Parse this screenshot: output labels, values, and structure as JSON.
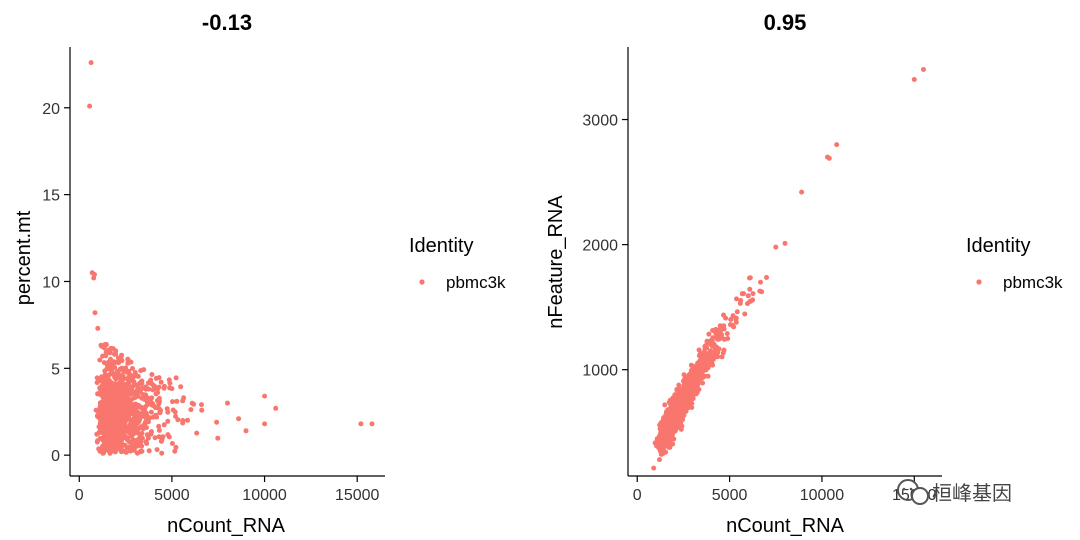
{
  "watermark": "桓峰基因",
  "chart_data": [
    {
      "type": "scatter",
      "title": "-0.13",
      "xlabel": "nCount_RNA",
      "ylabel": "percent.mt",
      "xlim": [
        -500,
        16500
      ],
      "ylim": [
        -1.2,
        23.5
      ],
      "xticks": [
        0,
        5000,
        10000,
        15000
      ],
      "yticks": [
        0,
        5,
        10,
        15,
        20
      ],
      "legend": {
        "title": "Identity",
        "entries": [
          "pbmc3k"
        ],
        "position": "right"
      },
      "color": "#F8766D",
      "grid": false,
      "cluster": {
        "x_range": [
          600,
          7500
        ],
        "y_range": [
          0,
          7
        ],
        "center": [
          2200,
          2.2
        ]
      },
      "outliers": [
        {
          "x": 640,
          "y": 22.6
        },
        {
          "x": 560,
          "y": 20.1
        },
        {
          "x": 700,
          "y": 10.5
        },
        {
          "x": 820,
          "y": 10.4
        },
        {
          "x": 780,
          "y": 10.2
        },
        {
          "x": 850,
          "y": 8.2
        },
        {
          "x": 1000,
          "y": 7.3
        },
        {
          "x": 8000,
          "y": 3.0
        },
        {
          "x": 8600,
          "y": 2.1
        },
        {
          "x": 9000,
          "y": 1.4
        },
        {
          "x": 10000,
          "y": 3.4
        },
        {
          "x": 10600,
          "y": 2.7
        },
        {
          "x": 10000,
          "y": 1.8
        },
        {
          "x": 15200,
          "y": 1.8
        },
        {
          "x": 15800,
          "y": 1.8
        }
      ]
    },
    {
      "type": "scatter",
      "title": "0.95",
      "xlabel": "nCount_RNA",
      "ylabel": "nFeature_RNA",
      "xlim": [
        -500,
        16500
      ],
      "ylim": [
        150,
        3580
      ],
      "xticks": [
        0,
        5000,
        10000,
        15000
      ],
      "yticks": [
        1000,
        2000,
        3000
      ],
      "legend": {
        "title": "Identity",
        "entries": [
          "pbmc3k"
        ],
        "position": "right"
      },
      "color": "#F8766D",
      "grid": false,
      "cluster": {
        "x_range": [
          500,
          7500
        ],
        "y_range": [
          200,
          2050
        ]
      },
      "outliers": [
        {
          "x": 7500,
          "y": 1980
        },
        {
          "x": 8000,
          "y": 2010
        },
        {
          "x": 8900,
          "y": 2420
        },
        {
          "x": 10300,
          "y": 2700
        },
        {
          "x": 10400,
          "y": 2690
        },
        {
          "x": 10800,
          "y": 2800
        },
        {
          "x": 15000,
          "y": 3320
        },
        {
          "x": 15500,
          "y": 3400
        }
      ]
    }
  ]
}
